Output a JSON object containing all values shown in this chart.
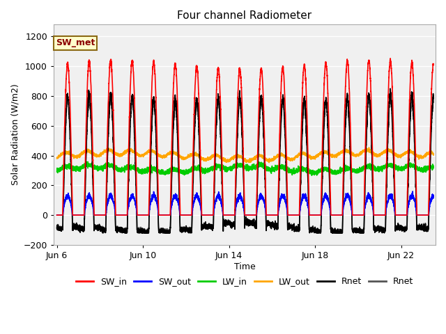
{
  "title": "Four channel Radiometer",
  "xlabel": "Time",
  "ylabel": "Solar Radiation (W/m2)",
  "ylim": [
    -200,
    1280
  ],
  "yticks": [
    -200,
    0,
    200,
    400,
    600,
    800,
    1000,
    1200
  ],
  "xlim": [
    5.85,
    23.6
  ],
  "annotation_text": "SW_met",
  "annotation_bg": "#FFFFCC",
  "annotation_border": "#8B6914",
  "annotation_text_color": "#8B0000",
  "plot_bg": "#F0F0F0",
  "grid_color": "#FFFFFF",
  "lines": [
    {
      "label": "SW_in",
      "color": "#FF0000",
      "lw": 1.2
    },
    {
      "label": "SW_out",
      "color": "#0000FF",
      "lw": 1.2
    },
    {
      "label": "LW_in",
      "color": "#00CC00",
      "lw": 1.2
    },
    {
      "label": "LW_out",
      "color": "#FFA500",
      "lw": 1.2
    },
    {
      "label": "Rnet",
      "color": "#000000",
      "lw": 1.2
    },
    {
      "label": "Rnet",
      "color": "#555555",
      "lw": 1.2
    }
  ],
  "xtick_labels": [
    "Jun 6",
    "Jun 10",
    "Jun 14",
    "Jun 18",
    "Jun 22"
  ],
  "xtick_positions": [
    6,
    10,
    14,
    18,
    22
  ]
}
